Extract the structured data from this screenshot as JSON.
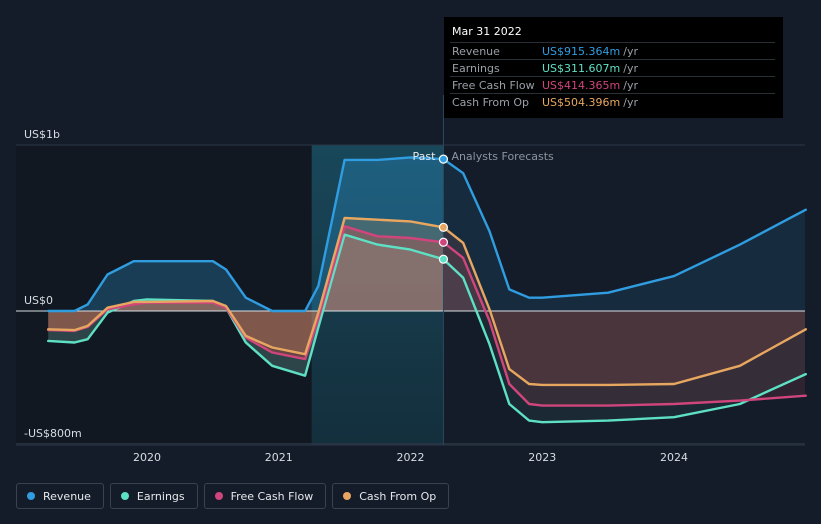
{
  "chart_data": {
    "type": "area",
    "title": "",
    "ylabel": "",
    "y_axis_labels": [
      {
        "label": "US$1b",
        "value": 1000
      },
      {
        "label": "US$0",
        "value": 0
      },
      {
        "label": "-US$800m",
        "value": -800
      }
    ],
    "ylim": [
      -800,
      1000
    ],
    "xlim": [
      2019.25,
      2025.0
    ],
    "x_ticks": [
      {
        "label": "2020",
        "value": 2020.0
      },
      {
        "label": "2021",
        "value": 2021.0
      },
      {
        "label": "2022",
        "value": 2022.0
      },
      {
        "label": "2023",
        "value": 2023.0
      },
      {
        "label": "2024",
        "value": 2024.0
      }
    ],
    "divider": {
      "x": 2022.25,
      "past_label": "Past",
      "forecast_label": "Analysts Forecasts"
    },
    "highlight_range": [
      2021.25,
      2022.25
    ],
    "series": [
      {
        "name": "Revenue",
        "color": "#2f9de0",
        "points": [
          [
            2019.25,
            0
          ],
          [
            2019.45,
            0
          ],
          [
            2019.55,
            40
          ],
          [
            2019.7,
            220
          ],
          [
            2019.9,
            300
          ],
          [
            2020.0,
            300
          ],
          [
            2020.5,
            300
          ],
          [
            2020.6,
            250
          ],
          [
            2020.75,
            80
          ],
          [
            2020.95,
            0
          ],
          [
            2021.2,
            0
          ],
          [
            2021.3,
            150
          ],
          [
            2021.5,
            910
          ],
          [
            2021.75,
            910
          ],
          [
            2022.0,
            925
          ],
          [
            2022.25,
            915
          ],
          [
            2022.4,
            830
          ],
          [
            2022.6,
            480
          ],
          [
            2022.75,
            130
          ],
          [
            2022.9,
            80
          ],
          [
            2023.0,
            80
          ],
          [
            2023.5,
            110
          ],
          [
            2024.0,
            210
          ],
          [
            2024.5,
            400
          ],
          [
            2025.0,
            610
          ]
        ]
      },
      {
        "name": "Earnings",
        "color": "#5ee0c4",
        "points": [
          [
            2019.25,
            -180
          ],
          [
            2019.45,
            -190
          ],
          [
            2019.55,
            -170
          ],
          [
            2019.7,
            -10
          ],
          [
            2019.9,
            60
          ],
          [
            2020.0,
            70
          ],
          [
            2020.5,
            60
          ],
          [
            2020.6,
            20
          ],
          [
            2020.75,
            -190
          ],
          [
            2020.95,
            -330
          ],
          [
            2021.2,
            -390
          ],
          [
            2021.3,
            -100
          ],
          [
            2021.5,
            460
          ],
          [
            2021.75,
            400
          ],
          [
            2022.0,
            370
          ],
          [
            2022.25,
            312
          ],
          [
            2022.4,
            200
          ],
          [
            2022.6,
            -200
          ],
          [
            2022.75,
            -560
          ],
          [
            2022.9,
            -660
          ],
          [
            2023.0,
            -670
          ],
          [
            2023.5,
            -660
          ],
          [
            2024.0,
            -640
          ],
          [
            2024.5,
            -560
          ],
          [
            2025.0,
            -380
          ]
        ]
      },
      {
        "name": "Free Cash Flow",
        "color": "#d0457c",
        "points": [
          [
            2019.25,
            -115
          ],
          [
            2019.45,
            -120
          ],
          [
            2019.55,
            -95
          ],
          [
            2019.7,
            10
          ],
          [
            2019.9,
            40
          ],
          [
            2020.0,
            50
          ],
          [
            2020.5,
            50
          ],
          [
            2020.6,
            20
          ],
          [
            2020.75,
            -160
          ],
          [
            2020.95,
            -250
          ],
          [
            2021.2,
            -290
          ],
          [
            2021.3,
            -50
          ],
          [
            2021.5,
            510
          ],
          [
            2021.75,
            450
          ],
          [
            2022.0,
            440
          ],
          [
            2022.25,
            414
          ],
          [
            2022.4,
            320
          ],
          [
            2022.6,
            -60
          ],
          [
            2022.75,
            -440
          ],
          [
            2022.9,
            -560
          ],
          [
            2023.0,
            -570
          ],
          [
            2023.5,
            -570
          ],
          [
            2024.0,
            -560
          ],
          [
            2024.5,
            -540
          ],
          [
            2025.0,
            -510
          ]
        ]
      },
      {
        "name": "Cash From Op",
        "color": "#e8a760",
        "points": [
          [
            2019.25,
            -110
          ],
          [
            2019.45,
            -115
          ],
          [
            2019.55,
            -90
          ],
          [
            2019.7,
            20
          ],
          [
            2019.9,
            55
          ],
          [
            2020.0,
            55
          ],
          [
            2020.5,
            60
          ],
          [
            2020.6,
            30
          ],
          [
            2020.75,
            -150
          ],
          [
            2020.95,
            -220
          ],
          [
            2021.2,
            -260
          ],
          [
            2021.3,
            -10
          ],
          [
            2021.5,
            560
          ],
          [
            2021.75,
            550
          ],
          [
            2022.0,
            540
          ],
          [
            2022.25,
            504
          ],
          [
            2022.4,
            410
          ],
          [
            2022.6,
            10
          ],
          [
            2022.75,
            -350
          ],
          [
            2022.9,
            -440
          ],
          [
            2023.0,
            -445
          ],
          [
            2023.5,
            -445
          ],
          [
            2024.0,
            -440
          ],
          [
            2024.5,
            -330
          ],
          [
            2025.0,
            -110
          ]
        ]
      }
    ],
    "markers": [
      {
        "series": "Revenue",
        "x": 2022.25,
        "y": 915
      },
      {
        "series": "Earnings",
        "x": 2022.25,
        "y": 312
      },
      {
        "series": "Free Cash Flow",
        "x": 2022.25,
        "y": 414
      },
      {
        "series": "Cash From Op",
        "x": 2022.25,
        "y": 504
      }
    ]
  },
  "tooltip": {
    "date": "Mar 31 2022",
    "rows": [
      {
        "label": "Revenue",
        "value": "US$915.364m",
        "unit": "/yr",
        "color": "#2f9de0"
      },
      {
        "label": "Earnings",
        "value": "US$311.607m",
        "unit": "/yr",
        "color": "#5ee0c4"
      },
      {
        "label": "Free Cash Flow",
        "value": "US$414.365m",
        "unit": "/yr",
        "color": "#d0457c"
      },
      {
        "label": "Cash From Op",
        "value": "US$504.396m",
        "unit": "/yr",
        "color": "#e8a760"
      }
    ]
  },
  "legend": [
    {
      "label": "Revenue",
      "color": "#2f9de0"
    },
    {
      "label": "Earnings",
      "color": "#5ee0c4"
    },
    {
      "label": "Free Cash Flow",
      "color": "#d0457c"
    },
    {
      "label": "Cash From Op",
      "color": "#e8a760"
    }
  ]
}
